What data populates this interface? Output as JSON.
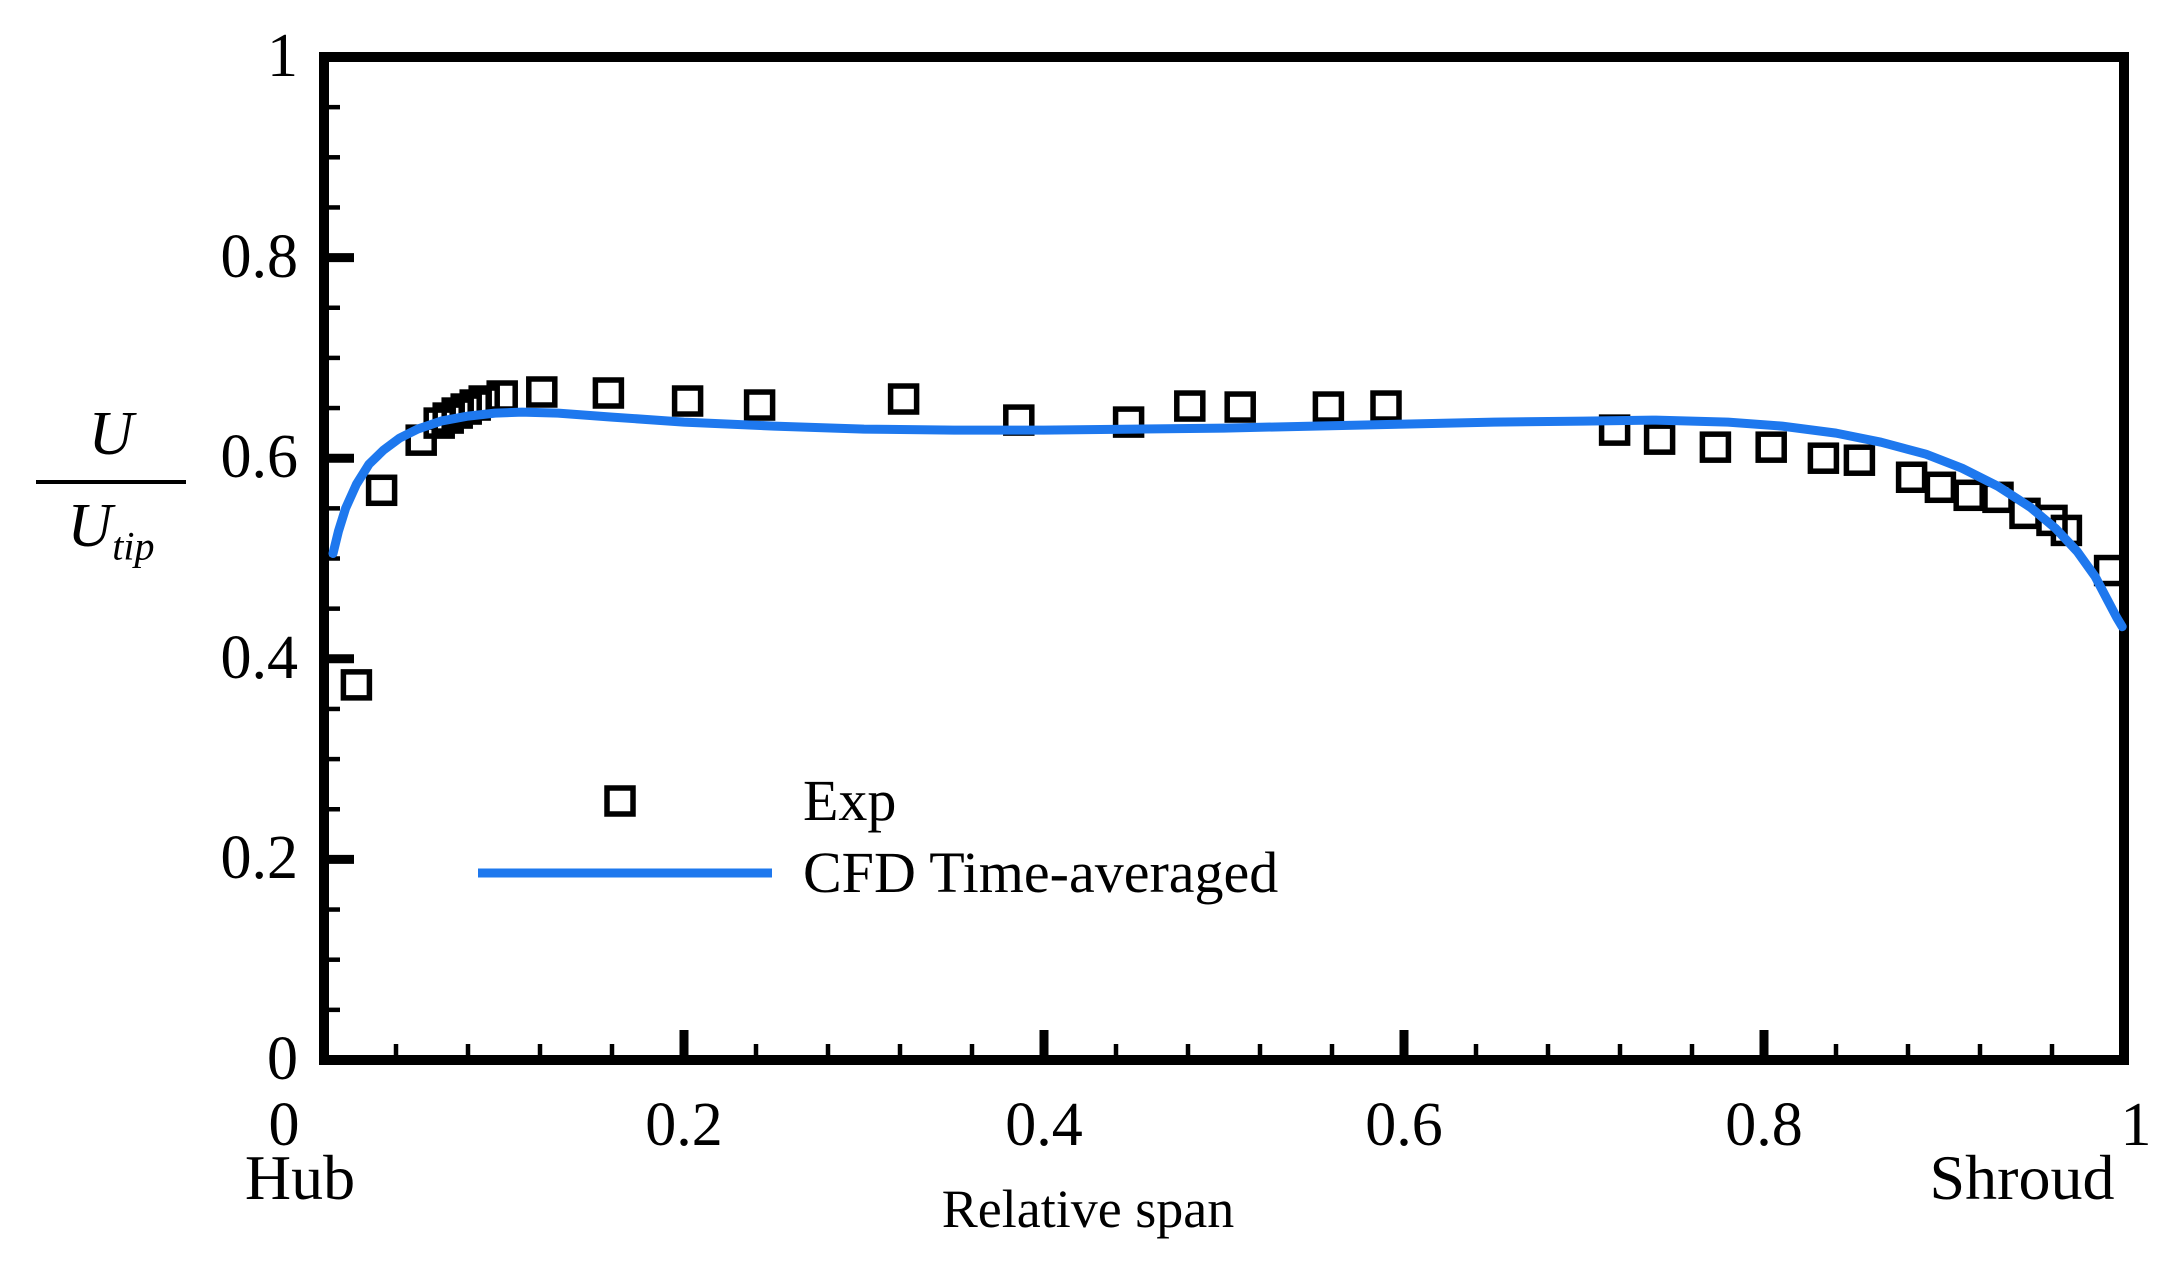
{
  "figure": {
    "xlabel": "Relative span",
    "x_left_annotation": "Hub",
    "x_right_annotation": "Shroud",
    "ylabel_numerator": "U",
    "ylabel_denominator": "U",
    "ylabel_denominator_subscript": "tip"
  },
  "legend": {
    "items": [
      {
        "label": "Exp",
        "swatch": "open-square-marker"
      },
      {
        "label": "CFD Time-averaged",
        "swatch": "line"
      }
    ]
  },
  "chart_data": {
    "type": "scatter",
    "title": "",
    "xlabel": "Relative span",
    "ylabel": "U / U_tip",
    "xlim": [
      0,
      1
    ],
    "ylim": [
      0,
      1
    ],
    "x_major_ticks": [
      0,
      0.2,
      0.4,
      0.6,
      0.8,
      1
    ],
    "x_tick_labels": [
      "0",
      "0.2",
      "0.4",
      "0.6",
      "0.8",
      "1"
    ],
    "x_minor_per_major": 5,
    "y_major_ticks": [
      0,
      0.2,
      0.4,
      0.6,
      0.8,
      1
    ],
    "y_tick_labels": [
      "0",
      "0.2",
      "0.4",
      "0.6",
      "0.8",
      "1"
    ],
    "y_minor_per_major": 4,
    "grid": false,
    "legend_position": "inside-lower-left",
    "annotations": {
      "x_left": "Hub",
      "x_right": "Shroud"
    },
    "colors": {
      "axis": "#000000",
      "marker_edge": "#000000",
      "cfd_line": "#1e78ee"
    },
    "series": [
      {
        "name": "Exp",
        "type": "scatter",
        "marker": "open-square",
        "color": "#000000",
        "points": [
          [
            0.018,
            0.374
          ],
          [
            0.032,
            0.568
          ],
          [
            0.054,
            0.618
          ],
          [
            0.064,
            0.635
          ],
          [
            0.069,
            0.64
          ],
          [
            0.074,
            0.645
          ],
          [
            0.079,
            0.649
          ],
          [
            0.084,
            0.653
          ],
          [
            0.089,
            0.657
          ],
          [
            0.099,
            0.662
          ],
          [
            0.121,
            0.666
          ],
          [
            0.158,
            0.665
          ],
          [
            0.202,
            0.657
          ],
          [
            0.242,
            0.653
          ],
          [
            0.322,
            0.659
          ],
          [
            0.386,
            0.638
          ],
          [
            0.447,
            0.636
          ],
          [
            0.481,
            0.652
          ],
          [
            0.509,
            0.651
          ],
          [
            0.558,
            0.651
          ],
          [
            0.59,
            0.652
          ],
          [
            0.717,
            0.628
          ],
          [
            0.742,
            0.619
          ],
          [
            0.773,
            0.611
          ],
          [
            0.804,
            0.611
          ],
          [
            0.833,
            0.6
          ],
          [
            0.853,
            0.598
          ],
          [
            0.882,
            0.581
          ],
          [
            0.898,
            0.571
          ],
          [
            0.914,
            0.563
          ],
          [
            0.93,
            0.561
          ],
          [
            0.945,
            0.545
          ],
          [
            0.96,
            0.538
          ],
          [
            0.968,
            0.528
          ],
          [
            0.992,
            0.488
          ]
        ]
      },
      {
        "name": "CFD Time-averaged",
        "type": "line",
        "color": "#1e78ee",
        "points": [
          [
            0.005,
            0.505
          ],
          [
            0.008,
            0.527
          ],
          [
            0.012,
            0.55
          ],
          [
            0.018,
            0.574
          ],
          [
            0.025,
            0.594
          ],
          [
            0.033,
            0.608
          ],
          [
            0.042,
            0.62
          ],
          [
            0.052,
            0.629
          ],
          [
            0.065,
            0.637
          ],
          [
            0.08,
            0.642
          ],
          [
            0.095,
            0.645
          ],
          [
            0.11,
            0.646
          ],
          [
            0.13,
            0.645
          ],
          [
            0.16,
            0.641
          ],
          [
            0.2,
            0.636
          ],
          [
            0.25,
            0.632
          ],
          [
            0.3,
            0.629
          ],
          [
            0.35,
            0.628
          ],
          [
            0.4,
            0.628
          ],
          [
            0.45,
            0.629
          ],
          [
            0.5,
            0.63
          ],
          [
            0.55,
            0.632
          ],
          [
            0.6,
            0.634
          ],
          [
            0.65,
            0.636
          ],
          [
            0.7,
            0.637
          ],
          [
            0.74,
            0.638
          ],
          [
            0.78,
            0.636
          ],
          [
            0.81,
            0.632
          ],
          [
            0.84,
            0.625
          ],
          [
            0.865,
            0.616
          ],
          [
            0.89,
            0.604
          ],
          [
            0.91,
            0.59
          ],
          [
            0.93,
            0.572
          ],
          [
            0.948,
            0.551
          ],
          [
            0.962,
            0.53
          ],
          [
            0.974,
            0.507
          ],
          [
            0.984,
            0.482
          ],
          [
            0.991,
            0.458
          ],
          [
            0.996,
            0.441
          ],
          [
            0.999,
            0.432
          ]
        ]
      }
    ]
  }
}
